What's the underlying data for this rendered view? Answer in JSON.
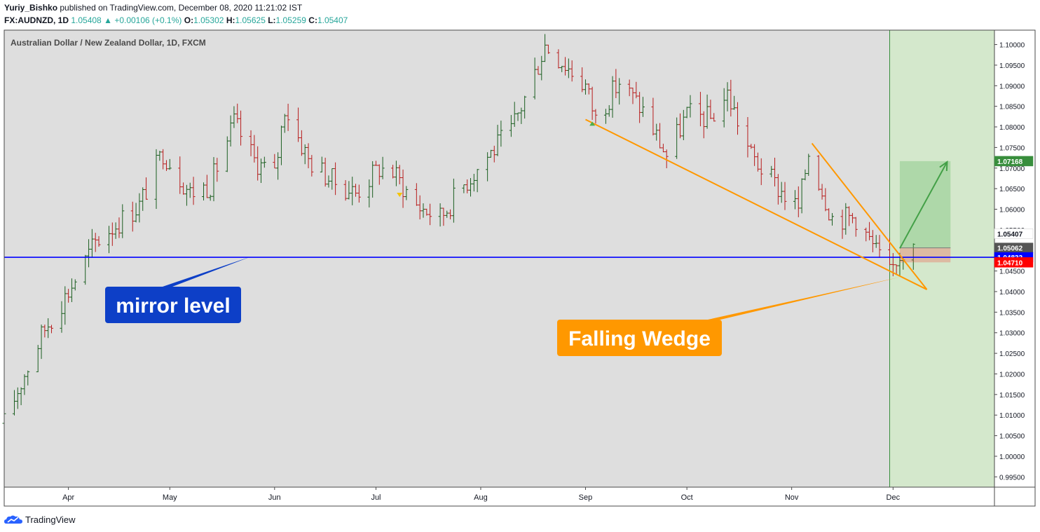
{
  "header": {
    "publisher": "Yuriy_Bishko",
    "published_text": "published on TradingView.com, December 08, 2020 11:21:02 IST",
    "symbol": "FX:AUDNZD, 1D",
    "last": "1.05408",
    "change": "+0.00106 (+0.1%)",
    "open_label": "O:",
    "open": "1.05302",
    "high_label": "H:",
    "high": "1.05625",
    "low_label": "L:",
    "low": "1.05259",
    "close_label": "C:",
    "close": "1.05407"
  },
  "footer": {
    "brand": "TradingView",
    "logo_icon": "tradingview-cloud-logo"
  },
  "chart_data": {
    "type": "ohlc-bar",
    "title": "Australian Dollar / New Zealand Dollar, 1D, FXCM",
    "xlabel": "",
    "ylabel": "",
    "x_start": "2020-03-13",
    "x_end": "2020-12-31",
    "ylim": [
      0.9925,
      1.1035
    ],
    "y_ticks": [
      "0.99500",
      "1.00000",
      "1.00500",
      "1.01000",
      "1.01500",
      "1.02000",
      "1.02500",
      "1.03000",
      "1.03500",
      "1.04000",
      "1.04500",
      "1.05000",
      "1.05500",
      "1.06000",
      "1.06500",
      "1.07000",
      "1.07500",
      "1.08000",
      "1.08500",
      "1.09000",
      "1.09500",
      "1.10000"
    ],
    "x_ticks": [
      {
        "date": "2020-04-01",
        "label": "Apr"
      },
      {
        "date": "2020-05-01",
        "label": "May"
      },
      {
        "date": "2020-06-01",
        "label": "Jun"
      },
      {
        "date": "2020-07-01",
        "label": "Jul"
      },
      {
        "date": "2020-08-01",
        "label": "Aug"
      },
      {
        "date": "2020-09-01",
        "label": "Sep"
      },
      {
        "date": "2020-10-01",
        "label": "Oct"
      },
      {
        "date": "2020-11-01",
        "label": "Nov"
      },
      {
        "date": "2020-12-01",
        "label": "Dec"
      }
    ],
    "up_color": "#1b5e20",
    "down_color": "#b71c1c",
    "price_path": [
      {
        "date": "2020-03-13",
        "price": 1.008
      },
      {
        "date": "2020-03-19",
        "price": 1.02
      },
      {
        "date": "2020-03-25",
        "price": 1.031
      },
      {
        "date": "2020-04-01",
        "price": 1.04
      },
      {
        "date": "2020-04-09",
        "price": 1.052
      },
      {
        "date": "2020-04-13",
        "price": 1.055
      },
      {
        "date": "2020-04-22",
        "price": 1.061
      },
      {
        "date": "2020-04-29",
        "price": 1.074
      },
      {
        "date": "2020-05-07",
        "price": 1.064
      },
      {
        "date": "2020-05-13",
        "price": 1.066
      },
      {
        "date": "2020-05-20",
        "price": 1.081
      },
      {
        "date": "2020-05-26",
        "price": 1.072
      },
      {
        "date": "2020-06-01",
        "price": 1.068
      },
      {
        "date": "2020-06-04",
        "price": 1.085
      },
      {
        "date": "2020-06-11",
        "price": 1.072
      },
      {
        "date": "2020-06-18",
        "price": 1.067
      },
      {
        "date": "2020-06-25",
        "price": 1.064
      },
      {
        "date": "2020-07-02",
        "price": 1.07
      },
      {
        "date": "2020-07-06",
        "price": 1.069
      },
      {
        "date": "2020-07-13",
        "price": 1.061
      },
      {
        "date": "2020-07-20",
        "price": 1.058
      },
      {
        "date": "2020-07-27",
        "price": 1.066
      },
      {
        "date": "2020-08-03",
        "price": 1.073
      },
      {
        "date": "2020-08-10",
        "price": 1.079
      },
      {
        "date": "2020-08-17",
        "price": 1.093
      },
      {
        "date": "2020-08-20",
        "price": 1.1
      },
      {
        "date": "2020-08-25",
        "price": 1.096
      },
      {
        "date": "2020-09-01",
        "price": 1.09
      },
      {
        "date": "2020-09-04",
        "price": 1.082
      },
      {
        "date": "2020-09-11",
        "price": 1.091
      },
      {
        "date": "2020-09-18",
        "price": 1.084
      },
      {
        "date": "2020-09-25",
        "price": 1.073
      },
      {
        "date": "2020-10-01",
        "price": 1.083
      },
      {
        "date": "2020-10-08",
        "price": 1.082
      },
      {
        "date": "2020-10-13",
        "price": 1.088
      },
      {
        "date": "2020-10-20",
        "price": 1.073
      },
      {
        "date": "2020-10-27",
        "price": 1.066
      },
      {
        "date": "2020-11-03",
        "price": 1.06
      },
      {
        "date": "2020-11-06",
        "price": 1.074
      },
      {
        "date": "2020-11-13",
        "price": 1.058
      },
      {
        "date": "2020-11-20",
        "price": 1.058
      },
      {
        "date": "2020-11-25",
        "price": 1.051
      },
      {
        "date": "2020-11-30",
        "price": 1.044
      },
      {
        "date": "2020-12-02",
        "price": 1.048
      },
      {
        "date": "2020-12-07",
        "price": 1.054
      }
    ],
    "highlight_region": {
      "from": "2020-11-30",
      "to": "2020-12-31",
      "color": "#d4e8cc",
      "line_color": "#388e3c"
    },
    "horizontal_level": {
      "value": 1.04833,
      "label": "1.04833",
      "color": "#0000ff"
    },
    "price_labels": [
      {
        "value": 1.07168,
        "label": "1.07168",
        "bg": "#388e3c",
        "fg": "#ffffff"
      },
      {
        "value": 1.05407,
        "label": "1.05407",
        "bg": "#ffffff",
        "fg": "#131722"
      },
      {
        "value": 1.05062,
        "label": "1.05062",
        "bg": "#555555",
        "fg": "#ffffff"
      },
      {
        "value": 1.04833,
        "label": "1.04833",
        "bg": "#0000ff",
        "fg": "#ffffff"
      },
      {
        "value": 1.0471,
        "label": "1.04710",
        "bg": "#ff0000",
        "fg": "#ffffff"
      }
    ],
    "position": {
      "from": "2020-12-03",
      "to": "2020-12-18",
      "entry": 1.05062,
      "target": 1.07168,
      "stop": 1.0471
    },
    "wedge_upper": [
      {
        "date": "2020-11-07",
        "price": 1.076
      },
      {
        "date": "2020-12-11",
        "price": 1.0405
      }
    ],
    "wedge_lower": [
      {
        "date": "2020-09-01",
        "price": 1.0818
      },
      {
        "date": "2020-12-11",
        "price": 1.0405
      }
    ],
    "arrow": [
      {
        "date": "2020-12-03",
        "price": 1.0505
      },
      {
        "date": "2020-12-17",
        "price": 1.0715
      }
    ],
    "markers": [
      {
        "date": "2020-07-08",
        "price": 1.0635,
        "shape": "down-triangle",
        "color": "#f5c400"
      },
      {
        "date": "2020-09-03",
        "price": 1.0808,
        "shape": "up-triangle",
        "color": "#4caf50"
      }
    ],
    "annotations": [
      {
        "text": "mirror level",
        "bg": "#0d3fc7",
        "fg": "#ffffff",
        "pointer": {
          "date": "2020-05-25",
          "price": 1.0485
        }
      },
      {
        "text": "Falling Wedge",
        "bg": "#ff9800",
        "fg": "#ffffff",
        "pointer": {
          "date": "2020-12-03",
          "price": 1.0435
        }
      }
    ],
    "grid": false,
    "legend": "none"
  }
}
